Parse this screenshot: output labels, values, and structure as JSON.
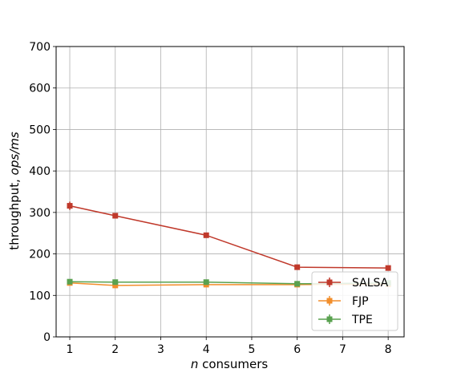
{
  "chart_data": {
    "type": "line",
    "title": "",
    "xlabel_prefix": "n",
    "xlabel_suffix": " consumers",
    "ylabel_prefix": "throughput, ",
    "ylabel_suffix": "ops/ms",
    "xlim": [
      0.7,
      8.35
    ],
    "ylim": [
      0,
      700
    ],
    "xticks": [
      1,
      2,
      3,
      4,
      5,
      6,
      7,
      8
    ],
    "yticks": [
      0,
      100,
      200,
      300,
      400,
      500,
      600,
      700
    ],
    "grid": true,
    "legend_position": "lower-right",
    "series": [
      {
        "name": "SALSA",
        "color": "#c0392b",
        "x": [
          1,
          2,
          4,
          6,
          8
        ],
        "y": [
          316,
          292,
          245,
          168,
          166
        ],
        "err": [
          10,
          4,
          3,
          3,
          3
        ]
      },
      {
        "name": "FJP",
        "color": "#f28e2b",
        "x": [
          1,
          2,
          4,
          6,
          8
        ],
        "y": [
          130,
          124,
          126,
          126,
          127
        ],
        "err": [
          4,
          4,
          3,
          3,
          3
        ]
      },
      {
        "name": "TPE",
        "color": "#59a14f",
        "x": [
          1,
          2,
          4,
          6,
          8
        ],
        "y": [
          133,
          132,
          132,
          128,
          130
        ],
        "err": [
          3,
          3,
          3,
          3,
          3
        ]
      }
    ]
  }
}
